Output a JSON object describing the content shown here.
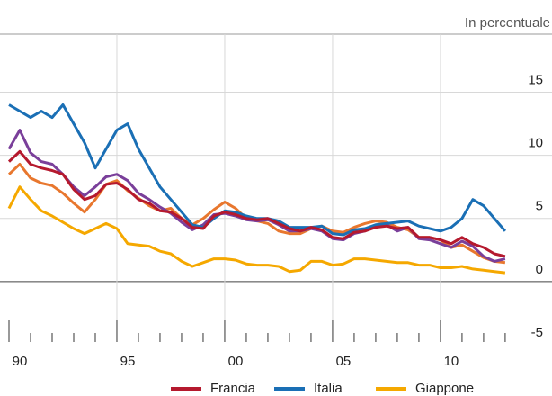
{
  "chart_data": {
    "type": "line",
    "subtitle": "In percentuale",
    "x": [
      1990,
      1990.5,
      1991,
      1991.5,
      1992,
      1992.5,
      1993,
      1993.5,
      1994,
      1994.5,
      1995,
      1995.5,
      1996,
      1996.5,
      1997,
      1997.5,
      1998,
      1998.5,
      1999,
      1999.5,
      2000,
      2000.5,
      2001,
      2001.5,
      2002,
      2002.5,
      2003,
      2003.5,
      2004,
      2004.5,
      2005,
      2005.5,
      2006,
      2006.5,
      2007,
      2007.5,
      2008,
      2008.5,
      2009,
      2009.5,
      2010,
      2010.5,
      2011,
      2011.5,
      2012,
      2012.5,
      2013
    ],
    "series": [
      {
        "name": "Giappone",
        "color": "#f5a800",
        "values": [
          5.8,
          7.5,
          6.5,
          5.6,
          5.2,
          4.7,
          4.2,
          3.8,
          4.2,
          4.6,
          4.2,
          3.0,
          2.9,
          2.8,
          2.4,
          2.2,
          1.6,
          1.2,
          1.5,
          1.8,
          1.8,
          1.7,
          1.4,
          1.3,
          1.3,
          1.2,
          0.8,
          0.9,
          1.6,
          1.6,
          1.3,
          1.4,
          1.8,
          1.8,
          1.7,
          1.6,
          1.5,
          1.5,
          1.3,
          1.3,
          1.1,
          1.1,
          1.2,
          1.0,
          0.9,
          0.8,
          0.7
        ]
      },
      {
        "color": "#e8772e",
        "values": [
          8.5,
          9.3,
          8.2,
          7.8,
          7.6,
          7.0,
          6.2,
          5.5,
          6.5,
          7.7,
          8.0,
          7.2,
          6.6,
          6.0,
          5.6,
          5.8,
          5.0,
          4.5,
          5.0,
          5.7,
          6.3,
          5.8,
          5.0,
          4.8,
          4.6,
          4.0,
          3.8,
          3.8,
          4.2,
          4.4,
          4.0,
          3.9,
          4.3,
          4.6,
          4.8,
          4.7,
          4.3,
          4.1,
          3.5,
          3.5,
          3.3,
          2.7,
          2.9,
          2.4,
          1.9,
          1.6,
          1.5
        ]
      },
      {
        "color": "#7a3f9a",
        "values": [
          10.5,
          12.0,
          10.2,
          9.5,
          9.3,
          8.5,
          7.5,
          6.8,
          7.5,
          8.3,
          8.5,
          8.0,
          7.0,
          6.5,
          5.9,
          5.4,
          4.7,
          4.1,
          4.5,
          5.3,
          5.4,
          5.2,
          4.9,
          4.8,
          4.9,
          4.5,
          4.0,
          4.0,
          4.2,
          4.0,
          3.4,
          3.3,
          3.8,
          4.0,
          4.4,
          4.5,
          4.0,
          4.3,
          3.4,
          3.3,
          3.0,
          2.7,
          3.2,
          2.8,
          2.0,
          1.6,
          1.8
        ]
      },
      {
        "name": "Italia",
        "color": "#1a6fb5",
        "values": [
          14.0,
          13.5,
          13.0,
          13.5,
          13.0,
          14.0,
          12.5,
          11.0,
          9.0,
          10.5,
          12.0,
          12.5,
          10.5,
          9.0,
          7.5,
          6.5,
          5.5,
          4.5,
          4.3,
          5.0,
          5.6,
          5.5,
          5.2,
          5.0,
          5.0,
          4.8,
          4.3,
          4.3,
          4.3,
          4.4,
          3.8,
          3.7,
          4.1,
          4.2,
          4.5,
          4.6,
          4.7,
          4.8,
          4.4,
          4.2,
          4.0,
          4.3,
          5.0,
          6.5,
          6.0,
          5.0,
          4.0
        ]
      },
      {
        "name": "Francia",
        "color": "#b5192e",
        "values": [
          9.5,
          10.3,
          9.3,
          9.0,
          8.8,
          8.5,
          7.3,
          6.5,
          6.8,
          7.7,
          7.8,
          7.3,
          6.5,
          6.2,
          5.6,
          5.5,
          5.0,
          4.3,
          4.2,
          5.2,
          5.5,
          5.3,
          5.0,
          4.9,
          5.0,
          4.6,
          4.2,
          4.0,
          4.3,
          4.1,
          3.5,
          3.4,
          3.9,
          4.0,
          4.3,
          4.4,
          4.2,
          4.3,
          3.5,
          3.5,
          3.3,
          3.0,
          3.5,
          3.0,
          2.7,
          2.2,
          2.0
        ]
      }
    ],
    "xlim": [
      1990,
      2015.17
    ],
    "xticks": [
      {
        "value": 1990,
        "label": "90"
      },
      {
        "value": 1995,
        "label": "95"
      },
      {
        "value": 2000,
        "label": "00"
      },
      {
        "value": 2005,
        "label": "05"
      },
      {
        "value": 2010,
        "label": "10"
      }
    ],
    "xminorticks": [
      1991,
      1992,
      1993,
      1994,
      1996,
      1997,
      1998,
      1999,
      2001,
      2002,
      2003,
      2004,
      2006,
      2007,
      2008,
      2009,
      2011,
      2012,
      2013
    ],
    "ylim": [
      -5,
      19.6
    ],
    "yticks": [
      -5,
      0,
      5,
      10,
      15
    ],
    "grid": true
  }
}
